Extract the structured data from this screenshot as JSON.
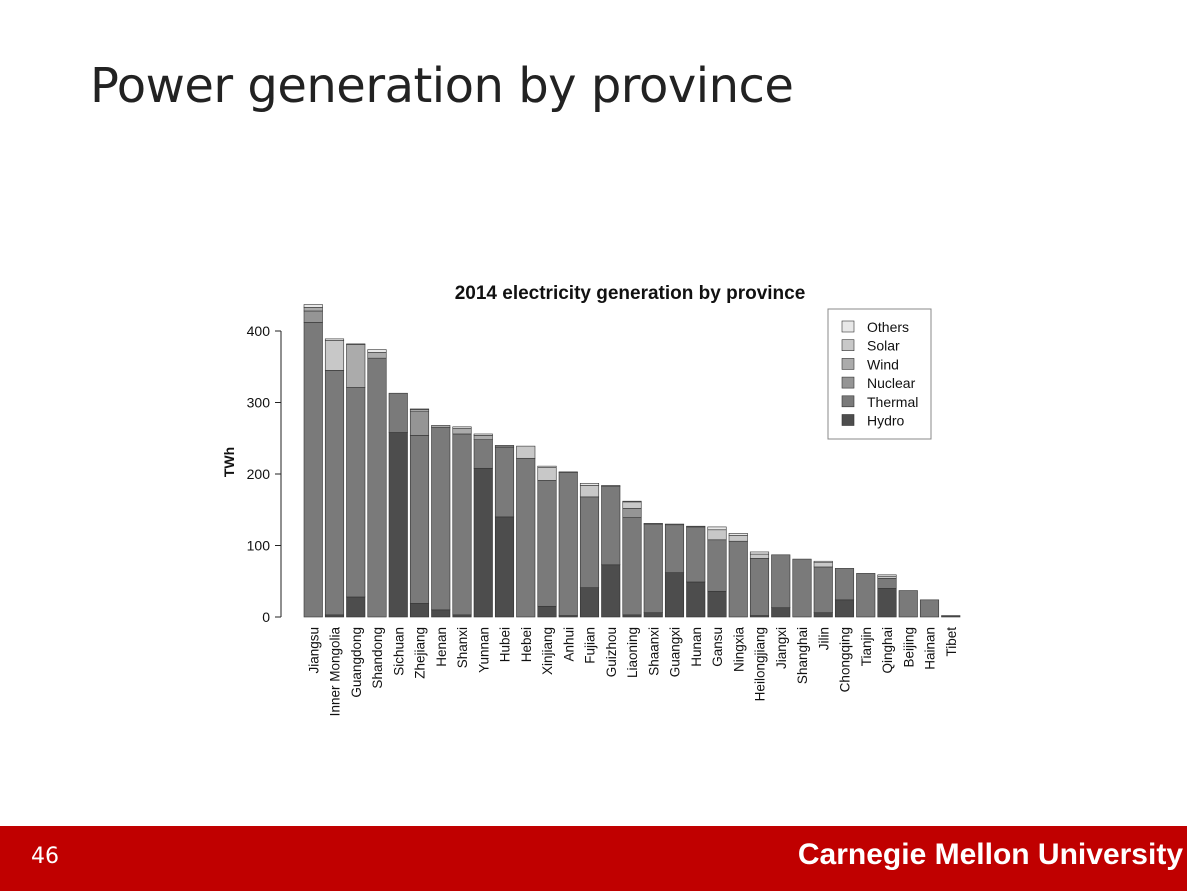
{
  "slide": {
    "title": "Power generation by province",
    "page_number": "46",
    "institution": "Carnegie Mellon University",
    "footer_color": "#c00000"
  },
  "chart_data": {
    "type": "bar",
    "stacked": true,
    "title": "2014 electricity generation by province",
    "xlabel": "",
    "ylabel": "TWh",
    "ylim": [
      0,
      440
    ],
    "yticks": [
      0,
      100,
      200,
      300,
      400
    ],
    "grid": false,
    "legend_position": "top-right",
    "categories": [
      "Jiangsu",
      "Inner Mongolia",
      "Guangdong",
      "Shandong",
      "Sichuan",
      "Zhejiang",
      "Henan",
      "Shanxi",
      "Yunnan",
      "Hubei",
      "Hebei",
      "Xinjiang",
      "Anhui",
      "Fujian",
      "Guizhou",
      "Liaoning",
      "Shaanxi",
      "Guangxi",
      "Hunan",
      "Gansu",
      "Ningxia",
      "Heilongjiang",
      "Jiangxi",
      "Shanghai",
      "Jilin",
      "Chongqing",
      "Tianjin",
      "Qinghai",
      "Beijing",
      "Hainan",
      "Tibet"
    ],
    "series": [
      {
        "name": "Hydro",
        "color": "#4d4d4d",
        "values": [
          0,
          3,
          28,
          0,
          258,
          19,
          10,
          3,
          208,
          140,
          0,
          15,
          2,
          41,
          73,
          3,
          6,
          62,
          49,
          36,
          0,
          2,
          13,
          0,
          6,
          24,
          0,
          40,
          0,
          0,
          2
        ]
      },
      {
        "name": "Thermal",
        "color": "#7a7a7a",
        "values": [
          412,
          342,
          293,
          362,
          55,
          235,
          255,
          253,
          40,
          97,
          222,
          176,
          200,
          127,
          110,
          136,
          124,
          67,
          77,
          72,
          106,
          80,
          74,
          81,
          64,
          44,
          61,
          14,
          37,
          24,
          0
        ]
      },
      {
        "name": "Nuclear",
        "color": "#959595",
        "values": [
          16,
          0,
          0,
          0,
          0,
          34,
          0,
          0,
          0,
          0,
          0,
          0,
          0,
          0,
          0,
          13,
          0,
          0,
          0,
          0,
          0,
          0,
          0,
          0,
          0,
          0,
          0,
          0,
          0,
          0,
          0
        ]
      },
      {
        "name": "Wind",
        "color": "#ababab",
        "values": [
          5,
          0,
          60,
          8,
          0,
          0,
          3,
          8,
          6,
          2,
          0,
          0,
          0,
          0,
          0,
          0,
          0,
          0,
          0,
          0,
          0,
          0,
          0,
          0,
          0,
          0,
          0,
          0,
          0,
          0,
          0
        ]
      },
      {
        "name": "Solar",
        "color": "#c8c8c8",
        "values": [
          0,
          42,
          0,
          0,
          0,
          2,
          0,
          0,
          0,
          0,
          17,
          18,
          0,
          16,
          0,
          9,
          0,
          0,
          0,
          14,
          8,
          6,
          0,
          0,
          6,
          0,
          0,
          3,
          0,
          0,
          0
        ]
      },
      {
        "name": "Others",
        "color": "#e8e8e8",
        "values": [
          4,
          2,
          1,
          4,
          0,
          1,
          0,
          2,
          2,
          1,
          0,
          2,
          1,
          3,
          1,
          1,
          1,
          1,
          1,
          4,
          3,
          3,
          0,
          0,
          2,
          0,
          0,
          2,
          0,
          0,
          0
        ]
      }
    ]
  }
}
